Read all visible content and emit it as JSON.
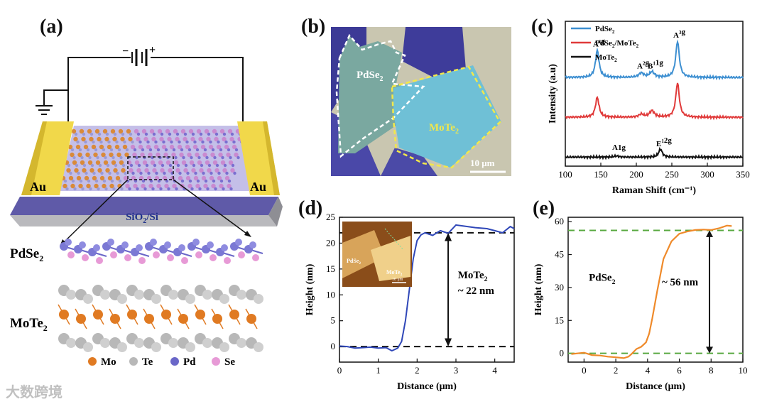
{
  "panels": {
    "a": "(a)",
    "b": "(b)",
    "c": "(c)",
    "d": "(d)",
    "e": "(e)"
  },
  "panel_a": {
    "electrode_left": "Au",
    "electrode_right": "Au",
    "substrate": "SiO",
    "substrate_sub": "2",
    "substrate_tail": "/Si",
    "battery_plus": "+",
    "battery_minus": "−",
    "layer_top": "PdSe",
    "layer_top_sub": "2",
    "layer_bottom": "MoTe",
    "layer_bottom_sub": "2",
    "legend": [
      {
        "label": "Mo",
        "color": "#e07a22"
      },
      {
        "label": "Te",
        "color": "#b8b8b8"
      },
      {
        "label": "Pd",
        "color": "#6a67c8"
      },
      {
        "label": "Se",
        "color": "#e79ad6"
      }
    ]
  },
  "panel_b": {
    "flake1": "PdSe",
    "flake1_sub": "2",
    "flake2": "MoTe",
    "flake2_sub": "2",
    "scale": "10 μm"
  },
  "chart_data": [
    {
      "id": "c",
      "type": "line",
      "title": "",
      "xlabel": "Raman Shift (cm⁻¹)",
      "ylabel": "Intensity (a.u)",
      "xlim": [
        100,
        350
      ],
      "xticks": [
        100,
        150,
        200,
        250,
        300,
        350
      ],
      "legend": [
        {
          "label": "PdSe",
          "sub": "2",
          "color": "#3d8fd1"
        },
        {
          "label": "PdSe",
          "sub": "2",
          "mid": "/MoTe",
          "sub2": "2",
          "color": "#e03a3a"
        },
        {
          "label": "MoTe",
          "sub": "2",
          "color": "#111111"
        }
      ],
      "series": [
        {
          "name": "PdSe2",
          "color": "#3d8fd1",
          "offset": 2.2,
          "peaks": [
            {
              "x": 145,
              "h": 0.75,
              "w": 3
            },
            {
              "x": 207,
              "h": 0.12,
              "w": 4
            },
            {
              "x": 222,
              "h": 0.15,
              "w": 4
            },
            {
              "x": 258,
              "h": 1.0,
              "w": 3
            }
          ]
        },
        {
          "name": "PdSe2/MoTe2",
          "color": "#e03a3a",
          "offset": 1.1,
          "peaks": [
            {
              "x": 145,
              "h": 0.55,
              "w": 3
            },
            {
              "x": 207,
              "h": 0.08,
              "w": 4
            },
            {
              "x": 222,
              "h": 0.18,
              "w": 4
            },
            {
              "x": 258,
              "h": 0.95,
              "w": 3
            }
          ]
        },
        {
          "name": "MoTe2",
          "color": "#111111",
          "offset": 0.0,
          "peaks": [
            {
              "x": 172,
              "h": 0.03,
              "w": 4
            },
            {
              "x": 234,
              "h": 0.22,
              "w": 3
            }
          ]
        }
      ],
      "annotations": [
        {
          "text": "A",
          "sup": "1",
          "sub": "g",
          "x": 145,
          "y": 3.05
        },
        {
          "text": "A",
          "sup": "2",
          "sub": "g",
          "x": 207,
          "y": 2.45
        },
        {
          "text": "B",
          "sup": "1",
          "sub": "1g",
          "x": 222,
          "y": 2.45
        },
        {
          "text": "A",
          "sup": "3",
          "sub": "g",
          "x": 258,
          "y": 3.3
        },
        {
          "text": "A",
          "sup": "",
          "sub": "1g",
          "x": 172,
          "y": 0.2
        },
        {
          "text": "E",
          "sup": "1",
          "sub": "2g",
          "x": 234,
          "y": 0.3
        }
      ]
    },
    {
      "id": "d",
      "type": "line",
      "xlabel": "Distance (μm)",
      "ylabel": "Height (nm)",
      "xlim": [
        0,
        4.5
      ],
      "ylim": [
        -3,
        25
      ],
      "xticks": [
        0,
        1,
        2,
        3,
        4
      ],
      "yticks": [
        0,
        5,
        10,
        15,
        20,
        25
      ],
      "color": "#2f47b8",
      "x": [
        0,
        0.2,
        0.4,
        0.6,
        0.8,
        1.0,
        1.2,
        1.35,
        1.5,
        1.6,
        1.7,
        1.8,
        1.9,
        2.0,
        2.1,
        2.2,
        2.4,
        2.6,
        2.8,
        3.0,
        3.2,
        3.5,
        3.8,
        4.0,
        4.2,
        4.4,
        4.5
      ],
      "y": [
        0.1,
        0.0,
        -0.3,
        -0.2,
        -0.1,
        -0.3,
        -0.2,
        -0.8,
        -0.3,
        1.0,
        5.0,
        11.0,
        17.0,
        20.5,
        21.6,
        22.0,
        21.5,
        22.4,
        21.9,
        23.5,
        23.3,
        23.0,
        22.8,
        22.4,
        22.0,
        23.2,
        22.8
      ],
      "dashed_levels": [
        0,
        22
      ],
      "annotation": {
        "line1": "MoTe",
        "line1_sub": "2",
        "line2": "~ 22 nm"
      },
      "inset_labels": {
        "a": "PdSe",
        "a_sub": "2",
        "b": "MoTe",
        "b_sub": "2",
        "scale": "10 μm"
      }
    },
    {
      "id": "e",
      "type": "line",
      "xlabel": "Distance (μm)",
      "ylabel": "Height (nm)",
      "xlim": [
        -1,
        10
      ],
      "ylim": [
        -4,
        62
      ],
      "xticks": [
        0,
        2,
        4,
        6,
        8,
        10
      ],
      "yticks": [
        0,
        15,
        30,
        45,
        60
      ],
      "color": "#ef8a2a",
      "x": [
        -0.8,
        0.0,
        0.5,
        1.0,
        1.5,
        2.0,
        2.5,
        2.8,
        3.0,
        3.3,
        3.6,
        3.9,
        4.1,
        4.3,
        4.6,
        5.0,
        5.5,
        6.0,
        6.5,
        7.0,
        7.5,
        8.0,
        8.5,
        9.0,
        9.3
      ],
      "y": [
        -0.3,
        0.3,
        -0.8,
        -1.0,
        -1.5,
        -1.8,
        -2.2,
        -1.5,
        -0.2,
        2.0,
        3.0,
        5.0,
        9.0,
        16.0,
        28.0,
        43.0,
        51.0,
        54.5,
        55.5,
        56.2,
        56.4,
        56.2,
        57.0,
        58.2,
        58.0
      ],
      "dashed_levels": [
        0,
        56
      ],
      "annotation": {
        "label": "PdSe",
        "label_sub": "2",
        "value": "~ 56 nm"
      }
    }
  ],
  "watermark": "大数跨境"
}
